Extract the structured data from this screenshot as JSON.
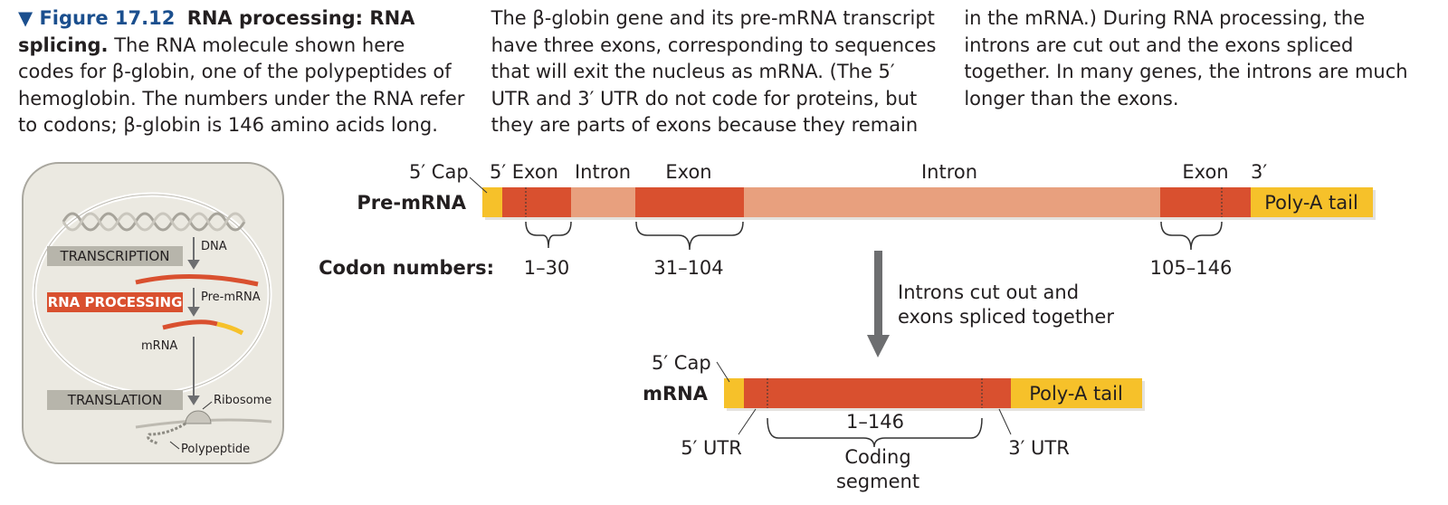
{
  "caption": {
    "label": "▼ Figure 17.12",
    "title": "RNA processing: RNA splicing.",
    "body": "The RNA molecule shown here codes for β-globin, one of the polypeptides of hemoglobin. The numbers under the RNA refer to codons; β-globin is 146 amino acids long. The β-globin gene and its pre-mRNA transcript have three exons, corresponding to sequences that will exit the nucleus as mRNA. (The 5′ UTR and 3′ UTR do not code for proteins, but they are parts of exons because they remain in the mRNA.) During RNA processing, the introns are cut out and the exons spliced together. In many genes, the introns are much longer than the exons."
  },
  "cell_icon": {
    "transcription": "TRANSCRIPTION",
    "dna": "DNA",
    "rna_processing": "RNA PROCESSING",
    "pre_mrna": "Pre-mRNA",
    "mrna": "mRNA",
    "translation": "TRANSLATION",
    "ribosome": "Ribosome",
    "polypeptide": "Polypeptide"
  },
  "pre_mrna": {
    "label": "Pre-mRNA",
    "cap": "5′ Cap",
    "segments": [
      "5′ Exon",
      "Intron",
      "Exon",
      "Intron",
      "Exon"
    ],
    "three_prime": "3′",
    "poly_a": "Poly-A tail",
    "codon_label": "Codon numbers:",
    "codon_ranges": [
      "1–30",
      "31–104",
      "105–146"
    ]
  },
  "splicing_note": [
    "Introns cut out and",
    "exons spliced together"
  ],
  "mrna": {
    "label": "mRNA",
    "cap": "5′ Cap",
    "poly_a": "Poly-A tail",
    "coding_range": "1–146",
    "utr5": "5′ UTR",
    "utr3": "3′ UTR",
    "coding_segment": [
      "Coding",
      "segment"
    ]
  }
}
